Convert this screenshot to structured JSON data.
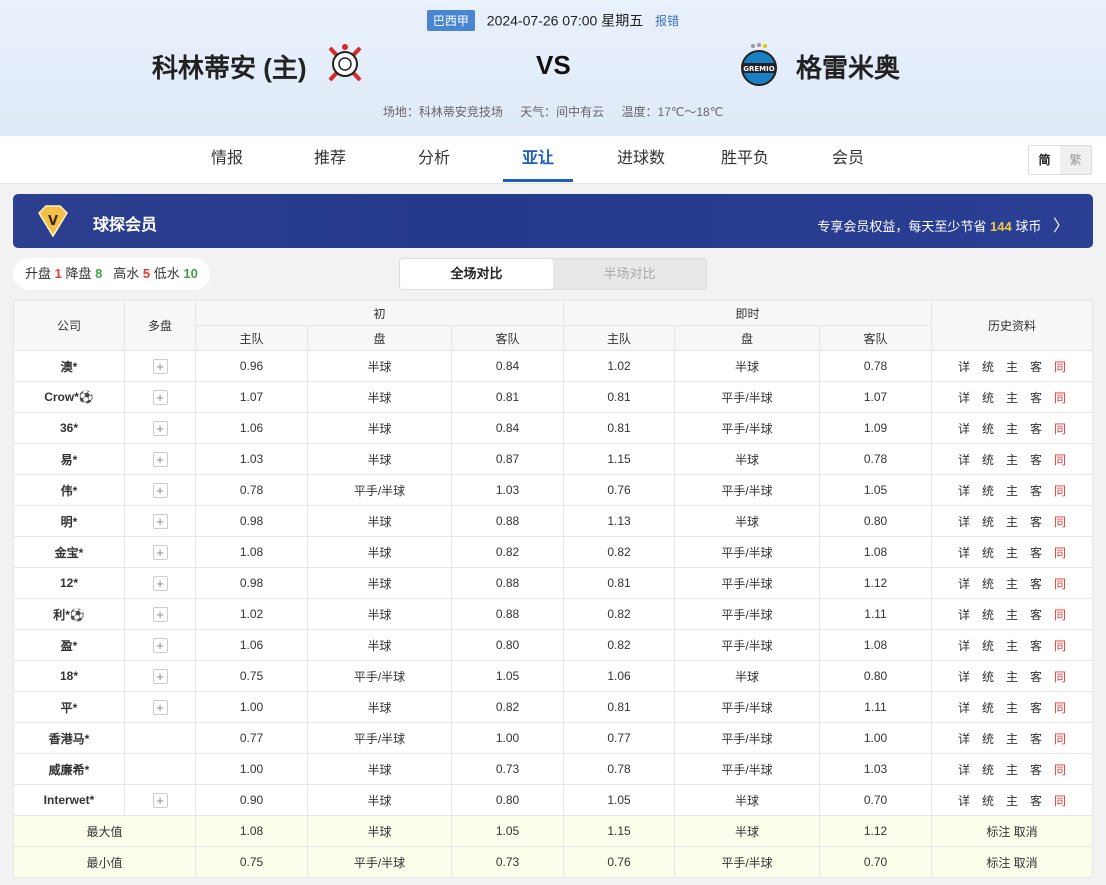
{
  "header": {
    "league": "巴西甲",
    "datetime": "2024-07-26 07:00 星期五",
    "report": "报错",
    "home": "科林蒂安 (主)",
    "away": "格雷米奥",
    "vs": "VS",
    "venue": "场地：科林蒂安竞技场",
    "weather": "天气：间中有云",
    "temp": "温度：17℃～18℃"
  },
  "nav": {
    "tabs": [
      "情报",
      "推荐",
      "分析",
      "亚让",
      "进球数",
      "胜平负",
      "会员"
    ],
    "active": 3,
    "lang_simplified": "简",
    "lang_traditional": "繁"
  },
  "vip": {
    "title": "球探会员",
    "promo_pre": "专享会员权益，每天至少节省 ",
    "promo_num": "144",
    "promo_post": " 球币"
  },
  "stats": {
    "up_label": "升盘",
    "up": "1",
    "down_label": "降盘",
    "down": "8",
    "high_label": "高水",
    "high": "5",
    "low_label": "低水",
    "low": "10"
  },
  "segment": {
    "full": "全场对比",
    "half": "半场对比"
  },
  "table": {
    "headers": {
      "company": "公司",
      "multi": "多盘",
      "initial": "初",
      "live": "即时",
      "history": "历史资料",
      "home": "主队",
      "line": "盘",
      "away": "客队"
    },
    "history_links": [
      "详",
      "统",
      "主",
      "客",
      "同"
    ],
    "rows": [
      [
        "澳*",
        true,
        "0.96",
        "半球",
        "0.84",
        "1.02",
        "半球",
        "0.78"
      ],
      [
        "Crow*⚽",
        true,
        "1.07",
        "半球",
        "0.81",
        "0.81",
        "平手/半球",
        "1.07"
      ],
      [
        "36*",
        true,
        "1.06",
        "半球",
        "0.84",
        "0.81",
        "平手/半球",
        "1.09"
      ],
      [
        "易*",
        true,
        "1.03",
        "半球",
        "0.87",
        "1.15",
        "半球",
        "0.78"
      ],
      [
        "伟*",
        true,
        "0.78",
        "平手/半球",
        "1.03",
        "0.76",
        "平手/半球",
        "1.05"
      ],
      [
        "明*",
        true,
        "0.98",
        "半球",
        "0.88",
        "1.13",
        "半球",
        "0.80"
      ],
      [
        "金宝*",
        true,
        "1.08",
        "半球",
        "0.82",
        "0.82",
        "平手/半球",
        "1.08"
      ],
      [
        "12*",
        true,
        "0.98",
        "半球",
        "0.88",
        "0.81",
        "平手/半球",
        "1.12"
      ],
      [
        "利*⚽",
        true,
        "1.02",
        "半球",
        "0.88",
        "0.82",
        "平手/半球",
        "1.11"
      ],
      [
        "盈*",
        true,
        "1.06",
        "半球",
        "0.80",
        "0.82",
        "平手/半球",
        "1.08"
      ],
      [
        "18*",
        true,
        "0.75",
        "平手/半球",
        "1.05",
        "1.06",
        "半球",
        "0.80"
      ],
      [
        "平*",
        true,
        "1.00",
        "半球",
        "0.82",
        "0.81",
        "平手/半球",
        "1.11"
      ],
      [
        "香港马*",
        false,
        "0.77",
        "平手/半球",
        "1.00",
        "0.77",
        "平手/半球",
        "1.00"
      ],
      [
        "威廉希*",
        false,
        "1.00",
        "半球",
        "0.73",
        "0.78",
        "平手/半球",
        "1.03"
      ],
      [
        "Interwet*",
        true,
        "0.90",
        "半球",
        "0.80",
        "1.05",
        "半球",
        "0.70"
      ]
    ],
    "summary": [
      [
        "最大值",
        "1.08",
        "半球",
        "1.05",
        "1.15",
        "半球",
        "1.12"
      ],
      [
        "最小值",
        "0.75",
        "平手/半球",
        "0.73",
        "0.76",
        "平手/半球",
        "0.70"
      ]
    ],
    "summary_links": [
      "标注",
      "取消"
    ]
  }
}
